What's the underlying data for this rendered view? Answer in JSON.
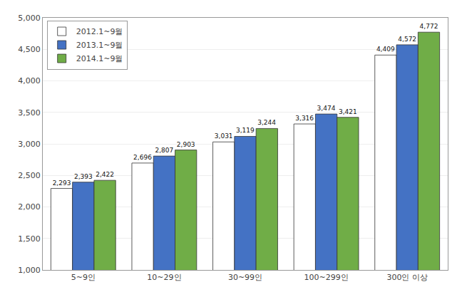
{
  "chart_data": {
    "type": "bar",
    "categories": [
      "5~9인",
      "10~29인",
      "30~99인",
      "100~299인",
      "300인 이상"
    ],
    "series": [
      {
        "name": "2012.1~9월",
        "color": "white",
        "values": [
          2293,
          2696,
          3031,
          3316,
          4409
        ],
        "value_labels": [
          "2,293",
          "2,696",
          "3,031",
          "3,316",
          "4,409"
        ]
      },
      {
        "name": "2013.1~9월",
        "color": "#4472c4",
        "values": [
          2393,
          2807,
          3119,
          3474,
          4572
        ],
        "value_labels": [
          "2,393",
          "2,807",
          "3,119",
          "3,474",
          "4,572"
        ]
      },
      {
        "name": "2014.1~9월",
        "color": "#70ad47",
        "values": [
          2422,
          2903,
          3244,
          3421,
          4772
        ],
        "value_labels": [
          "2,422",
          "2,903",
          "3,244",
          "3,421",
          "4,772"
        ]
      }
    ],
    "ylim": [
      1000,
      5000
    ],
    "yticks": [
      {
        "value": 1000,
        "label": "1,000"
      },
      {
        "value": 1500,
        "label": "1,500"
      },
      {
        "value": 2000,
        "label": "2,000"
      },
      {
        "value": 2500,
        "label": "2,500"
      },
      {
        "value": 3000,
        "label": "3,000"
      },
      {
        "value": 3500,
        "label": "3,500"
      },
      {
        "value": 4000,
        "label": "4,000"
      },
      {
        "value": 4500,
        "label": "4,500"
      },
      {
        "value": 5000,
        "label": "5,000"
      }
    ],
    "grid": true,
    "legend": "upper left",
    "data_labels": true
  }
}
